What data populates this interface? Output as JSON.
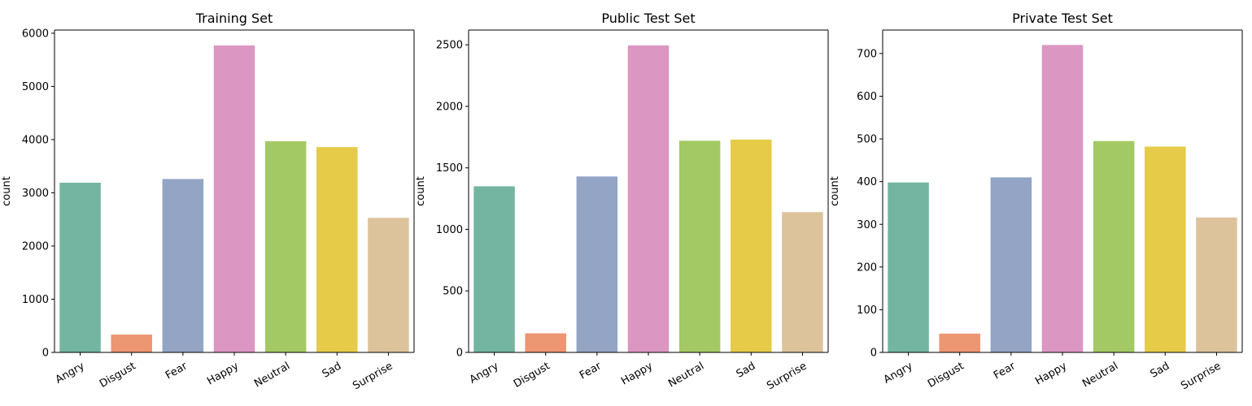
{
  "chart_data": [
    {
      "type": "bar",
      "title": "Training Set",
      "ylabel": "count",
      "xlabel": "",
      "categories": [
        "Angry",
        "Disgust",
        "Fear",
        "Happy",
        "Neutral",
        "Sad",
        "Surprise"
      ],
      "values": [
        3190,
        335,
        3260,
        5770,
        3970,
        3860,
        2530
      ],
      "ylim": [
        0,
        6060
      ],
      "yticks": [
        0,
        1000,
        2000,
        3000,
        4000,
        5000,
        6000
      ],
      "colors": [
        "#73b5a0",
        "#ec9672",
        "#93a4c5",
        "#db96c2",
        "#a3c964",
        "#e5cb48",
        "#dcc39c"
      ],
      "grid": false
    },
    {
      "type": "bar",
      "title": "Public Test Set",
      "ylabel": "count",
      "xlabel": "",
      "categories": [
        "Angry",
        "Disgust",
        "Fear",
        "Happy",
        "Neutral",
        "Sad",
        "Surprise"
      ],
      "values": [
        1350,
        155,
        1430,
        2495,
        1720,
        1730,
        1140
      ],
      "ylim": [
        0,
        2620
      ],
      "yticks": [
        0,
        500,
        1000,
        1500,
        2000,
        2500
      ],
      "colors": [
        "#73b5a0",
        "#ec9672",
        "#93a4c5",
        "#db96c2",
        "#a3c964",
        "#e5cb48",
        "#dcc39c"
      ],
      "grid": false
    },
    {
      "type": "bar",
      "title": "Private Test Set",
      "ylabel": "count",
      "xlabel": "",
      "categories": [
        "Angry",
        "Disgust",
        "Fear",
        "Happy",
        "Neutral",
        "Sad",
        "Surprise"
      ],
      "values": [
        398,
        44,
        410,
        720,
        495,
        482,
        316
      ],
      "ylim": [
        0,
        755
      ],
      "yticks": [
        0,
        100,
        200,
        300,
        400,
        500,
        600,
        700
      ],
      "colors": [
        "#73b5a0",
        "#ec9672",
        "#93a4c5",
        "#db96c2",
        "#a3c964",
        "#e5cb48",
        "#dcc39c"
      ],
      "grid": false
    }
  ]
}
